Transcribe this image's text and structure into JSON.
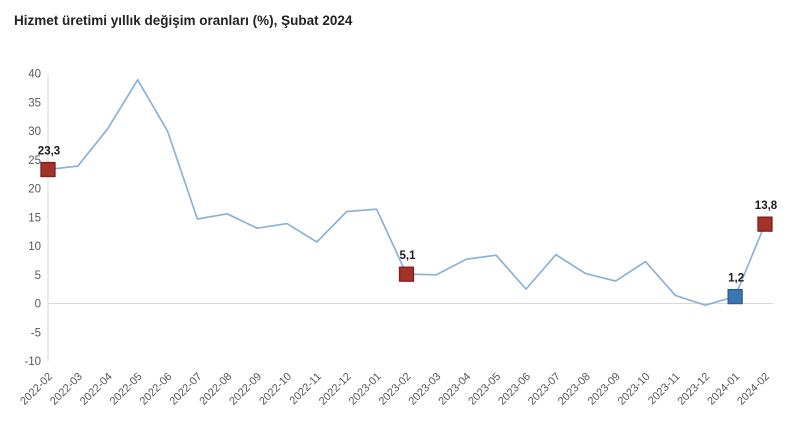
{
  "header": {
    "title": "Hizmet üretimi yıllık değişim oranları (%), Şubat 2024"
  },
  "chart_data": {
    "type": "line",
    "title": "Hizmet üretimi yıllık değişim oranları (%), Şubat 2024",
    "categories": [
      "2022-02",
      "2022-03",
      "2022-04",
      "2022-05",
      "2022-06",
      "2022-07",
      "2022-08",
      "2022-09",
      "2022-10",
      "2022-11",
      "2022-12",
      "2023-01",
      "2023-02",
      "2023-03",
      "2023-04",
      "2023-05",
      "2023-06",
      "2023-07",
      "2023-08",
      "2023-09",
      "2023-10",
      "2023-11",
      "2023-12",
      "2024-01",
      "2024-02"
    ],
    "values": [
      23.3,
      23.9,
      30.4,
      38.9,
      30.0,
      14.7,
      15.6,
      13.1,
      13.9,
      10.7,
      16.0,
      16.4,
      5.1,
      5.0,
      7.7,
      8.4,
      2.5,
      8.5,
      5.2,
      3.9,
      7.3,
      1.4,
      -0.3,
      1.2,
      13.8
    ],
    "ylim": [
      -10,
      40
    ],
    "yticks": [
      40,
      35,
      30,
      25,
      20,
      15,
      10,
      5,
      0,
      -5,
      -10
    ],
    "xlabel": "",
    "ylabel": "",
    "grid": "zero-baseline-only",
    "legend": "none",
    "decimal_separator": ",",
    "colors": {
      "line": "#8AB2D8",
      "axis": "#d8d8d8",
      "tick_labels": "#595959",
      "data_labels": "#1a1a1a",
      "marker_red": "#A33228",
      "marker_red_border": "#841F18",
      "marker_blue": "#3B76B1",
      "marker_blue_border": "#2A5D94"
    },
    "highlighted_points": [
      {
        "category": "2022-02",
        "value": 23.3,
        "label": "23,3",
        "color": "#A33228",
        "border": "#841F18"
      },
      {
        "category": "2023-02",
        "value": 5.1,
        "label": "5,1",
        "color": "#A33228",
        "border": "#841F18"
      },
      {
        "category": "2024-01",
        "value": 1.2,
        "label": "1,2",
        "color": "#3B76B1",
        "border": "#2A5D94"
      },
      {
        "category": "2024-02",
        "value": 13.8,
        "label": "13,8",
        "color": "#A33228",
        "border": "#841F18"
      }
    ]
  }
}
